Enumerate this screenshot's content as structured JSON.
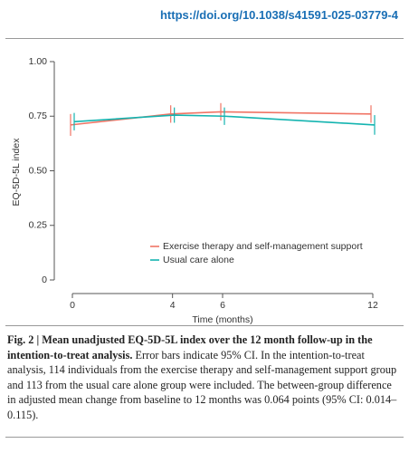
{
  "header": {
    "doi": "https://doi.org/10.1038/s41591-025-03779-4"
  },
  "chart_data": {
    "type": "line",
    "x_label": "Time (months)",
    "y_label": "EQ-5D-5L index",
    "x": [
      0,
      4,
      6,
      12
    ],
    "xlim": [
      0,
      12
    ],
    "xticks": [
      0,
      4,
      6,
      12
    ],
    "ylim": [
      0,
      1
    ],
    "yticks": [
      0,
      {
        "value": 0.25,
        "label": "0.25"
      },
      {
        "value": 0.5,
        "label": "0.50"
      },
      {
        "value": 0.75,
        "label": "0.75"
      },
      {
        "value": 1,
        "label": "1.00"
      }
    ],
    "legend": "lower right",
    "series": [
      {
        "name": "Exercise therapy and self-management support",
        "color": "#f07465",
        "values": [
          0.71,
          0.76,
          0.77,
          0.76
        ],
        "errors": [
          0.05,
          0.04,
          0.04,
          0.04
        ]
      },
      {
        "name": "Usual care alone",
        "color": "#14b4b0",
        "values": [
          0.725,
          0.755,
          0.75,
          0.71
        ],
        "errors": [
          0.04,
          0.035,
          0.04,
          0.045
        ]
      }
    ]
  },
  "caption": {
    "label": "Fig. 2 |",
    "title": "Mean unadjusted EQ-5D-5L index over the 12 month follow-up in the intention-to-treat analysis.",
    "text": "Error bars indicate 95% CI. In the intention-to-treat analysis, 114 individuals from the exercise therapy and self-management support group and 113 from the usual care alone group were included. The between-group difference in adjusted mean change from baseline to 12 months was 0.064 points (95% CI: 0.014–0.115)."
  }
}
